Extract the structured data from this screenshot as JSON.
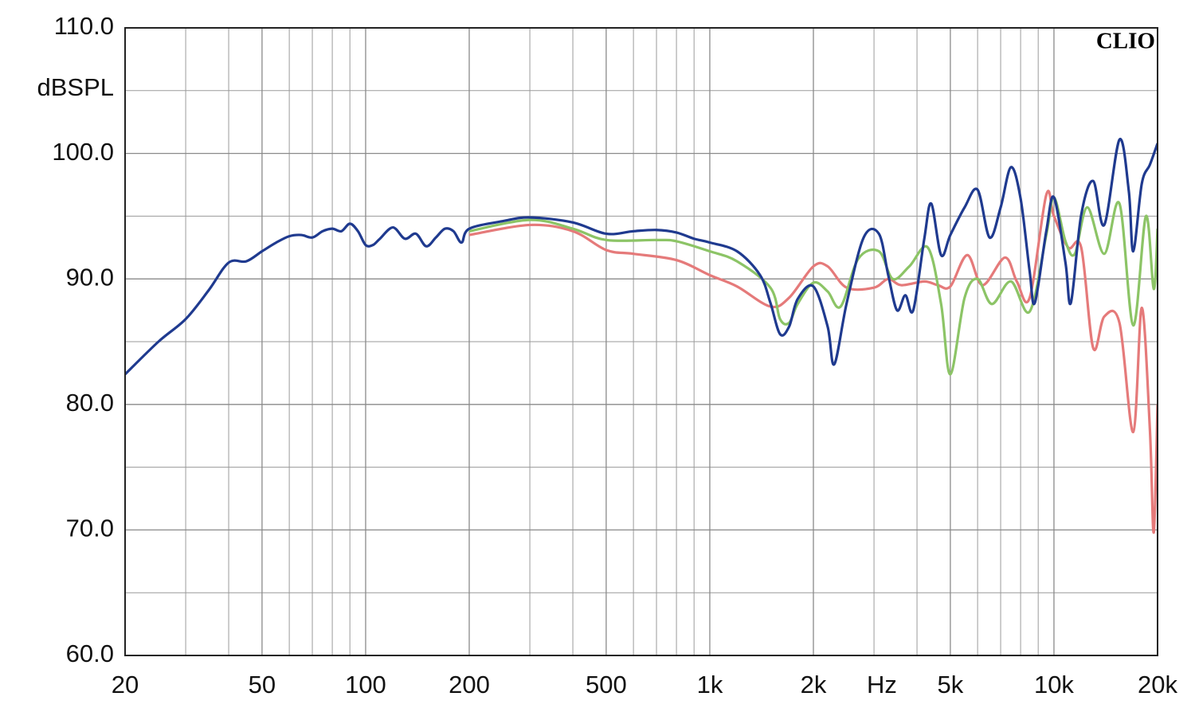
{
  "chart_data": {
    "type": "line",
    "annotation": "CLIO",
    "y_label": "dBSPL",
    "x_label": "Hz",
    "xscale": "log",
    "grid": true,
    "xlim": [
      20,
      20000
    ],
    "ylim": [
      60,
      110
    ],
    "xticks": [
      20,
      50,
      100,
      200,
      500,
      {
        "value": 1000,
        "label": "1k"
      },
      {
        "value": 2000,
        "label": "2k"
      },
      {
        "value": 5000,
        "label": "5k"
      },
      {
        "value": 10000,
        "label": "10k"
      },
      {
        "value": 20000,
        "label": "20k"
      }
    ],
    "x_minor_ticks": [
      30,
      40,
      60,
      70,
      80,
      90,
      300,
      400,
      600,
      700,
      800,
      900,
      3000,
      4000,
      6000,
      7000,
      8000,
      9000
    ],
    "yticks": [
      {
        "value": 60,
        "label": "60.0"
      },
      {
        "value": 70,
        "label": "70.0"
      },
      {
        "value": 80,
        "label": "80.0"
      },
      {
        "value": 90,
        "label": "90.0"
      },
      {
        "value": 100,
        "label": "100.0"
      },
      {
        "value": 110,
        "label": "110.0"
      }
    ],
    "y_minor_ticks": [
      65,
      75,
      85,
      95,
      105
    ],
    "series": [
      {
        "color": "#e57a7a",
        "x": [
          200,
          300,
          400,
          500,
          600,
          800,
          1000,
          1200,
          1500,
          1700,
          2000,
          2200,
          2500,
          3000,
          3300,
          3600,
          4200,
          4600,
          5000,
          5600,
          6200,
          7200,
          7800,
          8500,
          9500,
          10000,
          11000,
          12000,
          13000,
          14000,
          15500,
          17000,
          18000,
          19000,
          19500,
          20000
        ],
        "values": [
          93.5,
          94.3,
          93.8,
          92.3,
          92.0,
          91.5,
          90.3,
          89.4,
          87.8,
          88.5,
          91.0,
          91.0,
          89.3,
          89.3,
          90.0,
          89.5,
          89.8,
          89.5,
          89.4,
          91.9,
          89.5,
          91.7,
          89.8,
          88.5,
          96.7,
          95.0,
          92.5,
          92.5,
          84.5,
          87.0,
          86.5,
          77.8,
          87.7,
          78.0,
          69.8,
          80.0
        ]
      },
      {
        "color": "#8cc466",
        "x": [
          200,
          300,
          400,
          500,
          700,
          800,
          1000,
          1200,
          1500,
          1600,
          1700,
          1800,
          2000,
          2200,
          2400,
          2700,
          3100,
          3400,
          3800,
          4300,
          4700,
          5000,
          5500,
          6000,
          6600,
          7500,
          8500,
          9500,
          10000,
          10800,
          11500,
          12500,
          14000,
          15500,
          17000,
          18500,
          19500,
          20000
        ],
        "values": [
          93.8,
          94.7,
          94.0,
          93.1,
          93.1,
          93.0,
          92.2,
          91.4,
          89.3,
          86.8,
          86.5,
          88.0,
          89.7,
          89.0,
          87.8,
          91.6,
          92.2,
          90.0,
          91.0,
          92.5,
          88.0,
          82.4,
          88.5,
          90.0,
          88.0,
          89.8,
          87.4,
          93.5,
          96.5,
          93.0,
          92.0,
          95.7,
          92.0,
          96.0,
          86.3,
          95.0,
          89.2,
          94.0
        ]
      },
      {
        "color": "#1f3a8f",
        "x": [
          20,
          25,
          30,
          35,
          40,
          45,
          50,
          55,
          60,
          65,
          70,
          75,
          80,
          85,
          90,
          95,
          100,
          105,
          110,
          120,
          130,
          140,
          150,
          160,
          170,
          180,
          190,
          200,
          250,
          300,
          400,
          500,
          600,
          700,
          800,
          900,
          1000,
          1200,
          1400,
          1500,
          1600,
          1700,
          1800,
          2000,
          2200,
          2300,
          2500,
          2800,
          3100,
          3300,
          3500,
          3700,
          3900,
          4200,
          4400,
          4700,
          5000,
          5500,
          6000,
          6500,
          7000,
          7500,
          8000,
          8500,
          8800,
          9500,
          10000,
          10800,
          11200,
          12000,
          13000,
          14000,
          15500,
          16500,
          17000,
          18000,
          19000,
          20000
        ],
        "values": [
          82.4,
          85.0,
          86.8,
          89.1,
          91.3,
          91.4,
          92.2,
          92.9,
          93.4,
          93.5,
          93.3,
          93.8,
          94.0,
          93.8,
          94.4,
          93.8,
          92.7,
          92.7,
          93.2,
          94.1,
          93.2,
          93.6,
          92.6,
          93.3,
          94.0,
          93.8,
          92.9,
          94.0,
          94.6,
          94.9,
          94.5,
          93.6,
          93.8,
          93.9,
          93.7,
          93.2,
          92.9,
          92.2,
          90.3,
          88.1,
          85.6,
          86.2,
          88.4,
          89.4,
          86.2,
          83.2,
          88.1,
          93.3,
          93.6,
          90.3,
          87.5,
          88.7,
          87.5,
          93.2,
          96.0,
          91.9,
          93.5,
          95.7,
          97.1,
          93.3,
          95.7,
          98.9,
          96.4,
          90.6,
          88.1,
          93.8,
          96.5,
          91.3,
          88.1,
          95.1,
          97.8,
          94.3,
          101.1,
          97.0,
          92.2,
          97.6,
          99.1,
          100.8
        ]
      }
    ]
  }
}
